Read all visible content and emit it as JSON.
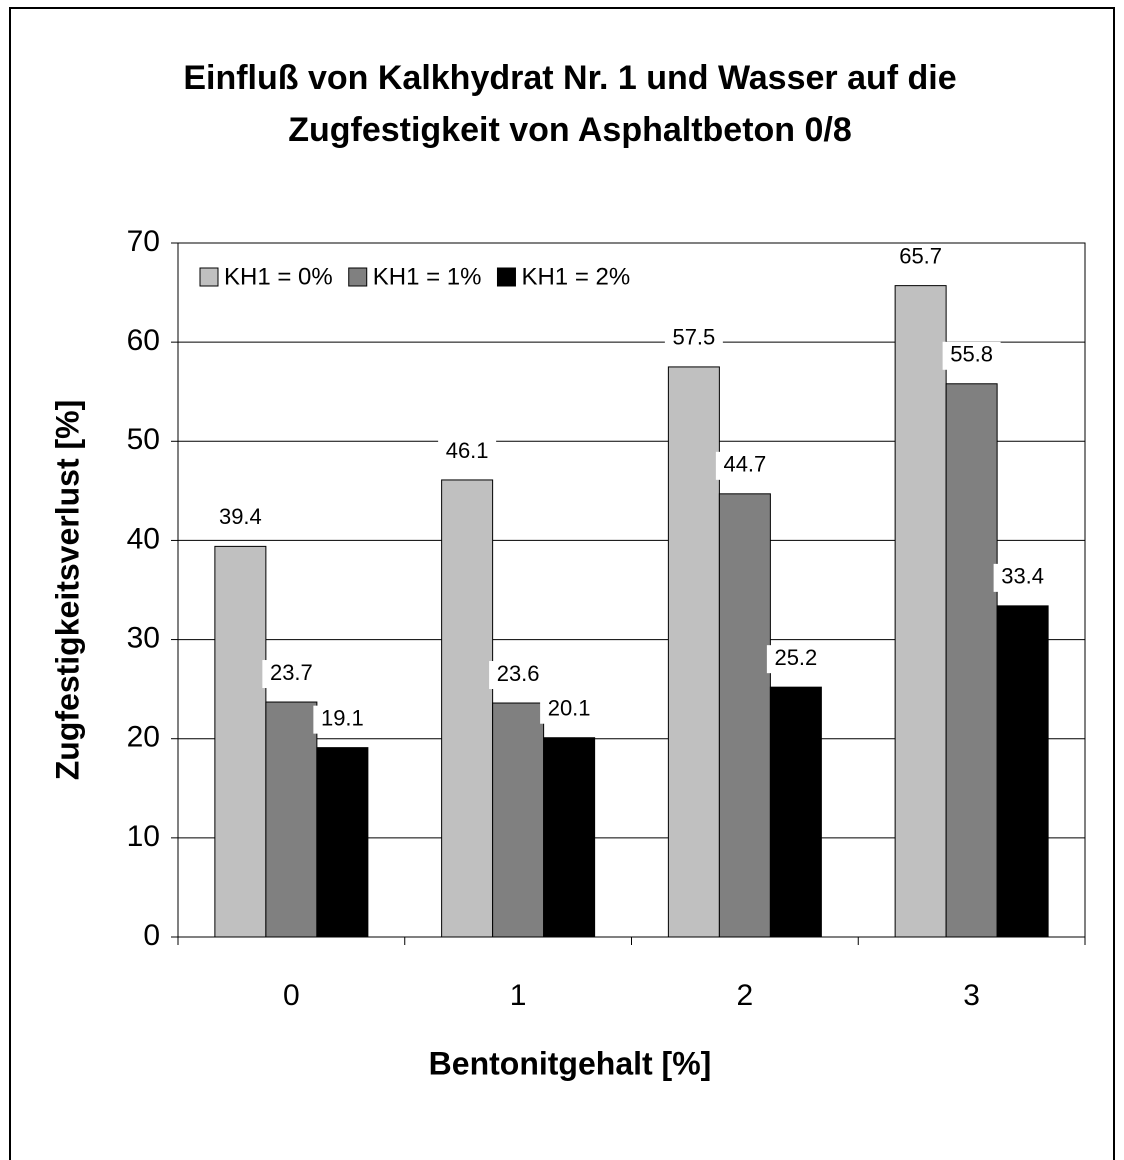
{
  "chart_data": {
    "type": "bar",
    "title": [
      "Einfluß von Kalkhydrat Nr. 1 und Wasser auf die",
      "Zugfestigkeit von Asphaltbeton 0/8"
    ],
    "x_label": "Bentonitgehalt [%]",
    "y_label": "Zugfestigkeitsverlust [%]",
    "categories": [
      "0",
      "1",
      "2",
      "3"
    ],
    "series": [
      {
        "name": "KH1 = 0%",
        "color": "#c0c0c0",
        "values": [
          39.4,
          46.1,
          57.5,
          65.7
        ]
      },
      {
        "name": "KH1 = 1%",
        "color": "#808080",
        "values": [
          23.7,
          23.6,
          44.7,
          55.8
        ]
      },
      {
        "name": "KH1 = 2%",
        "color": "#000000",
        "values": [
          19.1,
          20.1,
          25.2,
          33.4
        ]
      }
    ],
    "ylim": [
      0,
      70
    ],
    "yticks": [
      0,
      10,
      20,
      30,
      40,
      50,
      60,
      70
    ],
    "grid": true,
    "legend": "upper left"
  }
}
